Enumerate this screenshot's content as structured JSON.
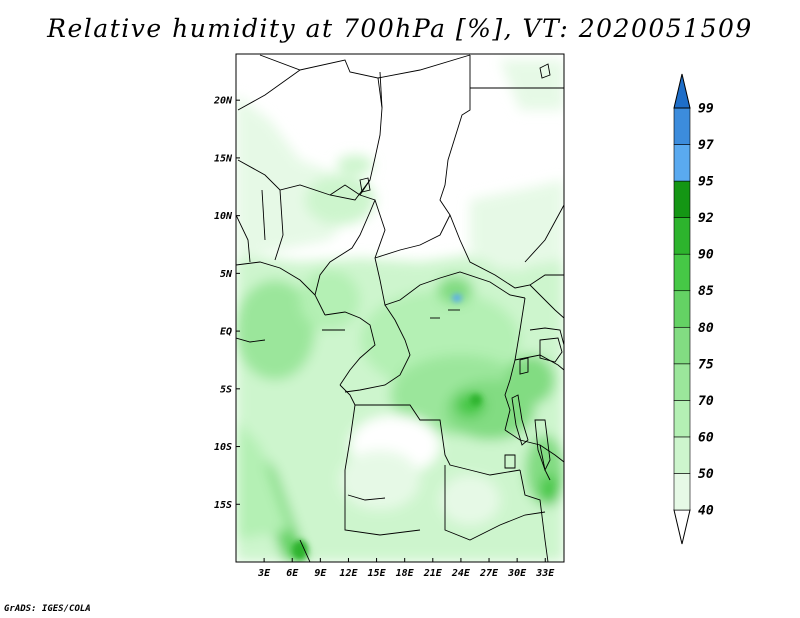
{
  "title": "Relative humidity at 700hPa [%], VT: 2020051509",
  "credit": "GrADS: IGES/COLA",
  "map": {
    "lon_range": [
      0,
      35
    ],
    "lat_range": [
      -20,
      24
    ],
    "lon_ticks": [
      "3E",
      "6E",
      "9E",
      "12E",
      "15E",
      "18E",
      "21E",
      "24E",
      "27E",
      "30E",
      "33E"
    ],
    "lat_ticks": [
      "20N",
      "15N",
      "10N",
      "5N",
      "EQ",
      "5S",
      "10S",
      "15S"
    ]
  },
  "colorbar": {
    "levels": [
      "40",
      "50",
      "60",
      "70",
      "75",
      "80",
      "85",
      "90",
      "92",
      "95",
      "97",
      "99"
    ],
    "colors": [
      "#ffffff",
      "#e6f9e6",
      "#cdf5cd",
      "#b4f0b4",
      "#9be69b",
      "#82dc82",
      "#64d264",
      "#46c846",
      "#2db42d",
      "#149614",
      "#5aaaf0",
      "#3c8cdc",
      "#1e6ec8"
    ]
  }
}
